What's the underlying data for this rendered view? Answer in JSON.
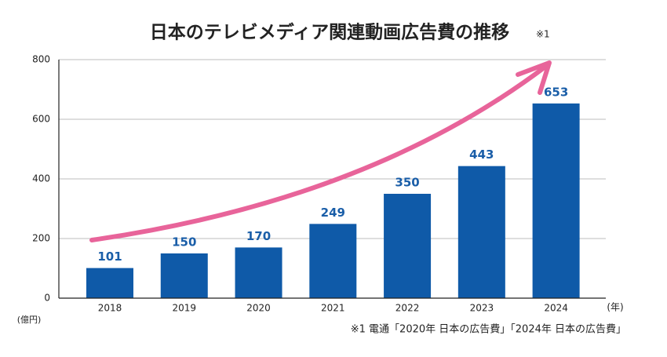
{
  "chart_data": {
    "type": "bar",
    "title": "日本のテレビメディア関連動画広告費の推移",
    "title_note": "※1",
    "y_unit": "(億円)",
    "x_unit": "(年)",
    "note": "※1 電通「2020年 日本の広告費」「2024年 日本の広告費」",
    "categories": [
      "2018",
      "2019",
      "2020",
      "2021",
      "2022",
      "2023",
      "2024"
    ],
    "values": [
      101,
      150,
      170,
      249,
      350,
      443,
      653
    ],
    "color": "#0f5aa8",
    "label_color": "#1a5ea8",
    "ylim": [
      0,
      800
    ],
    "yticks": [
      0,
      200,
      400,
      600,
      800
    ],
    "grid": true
  }
}
